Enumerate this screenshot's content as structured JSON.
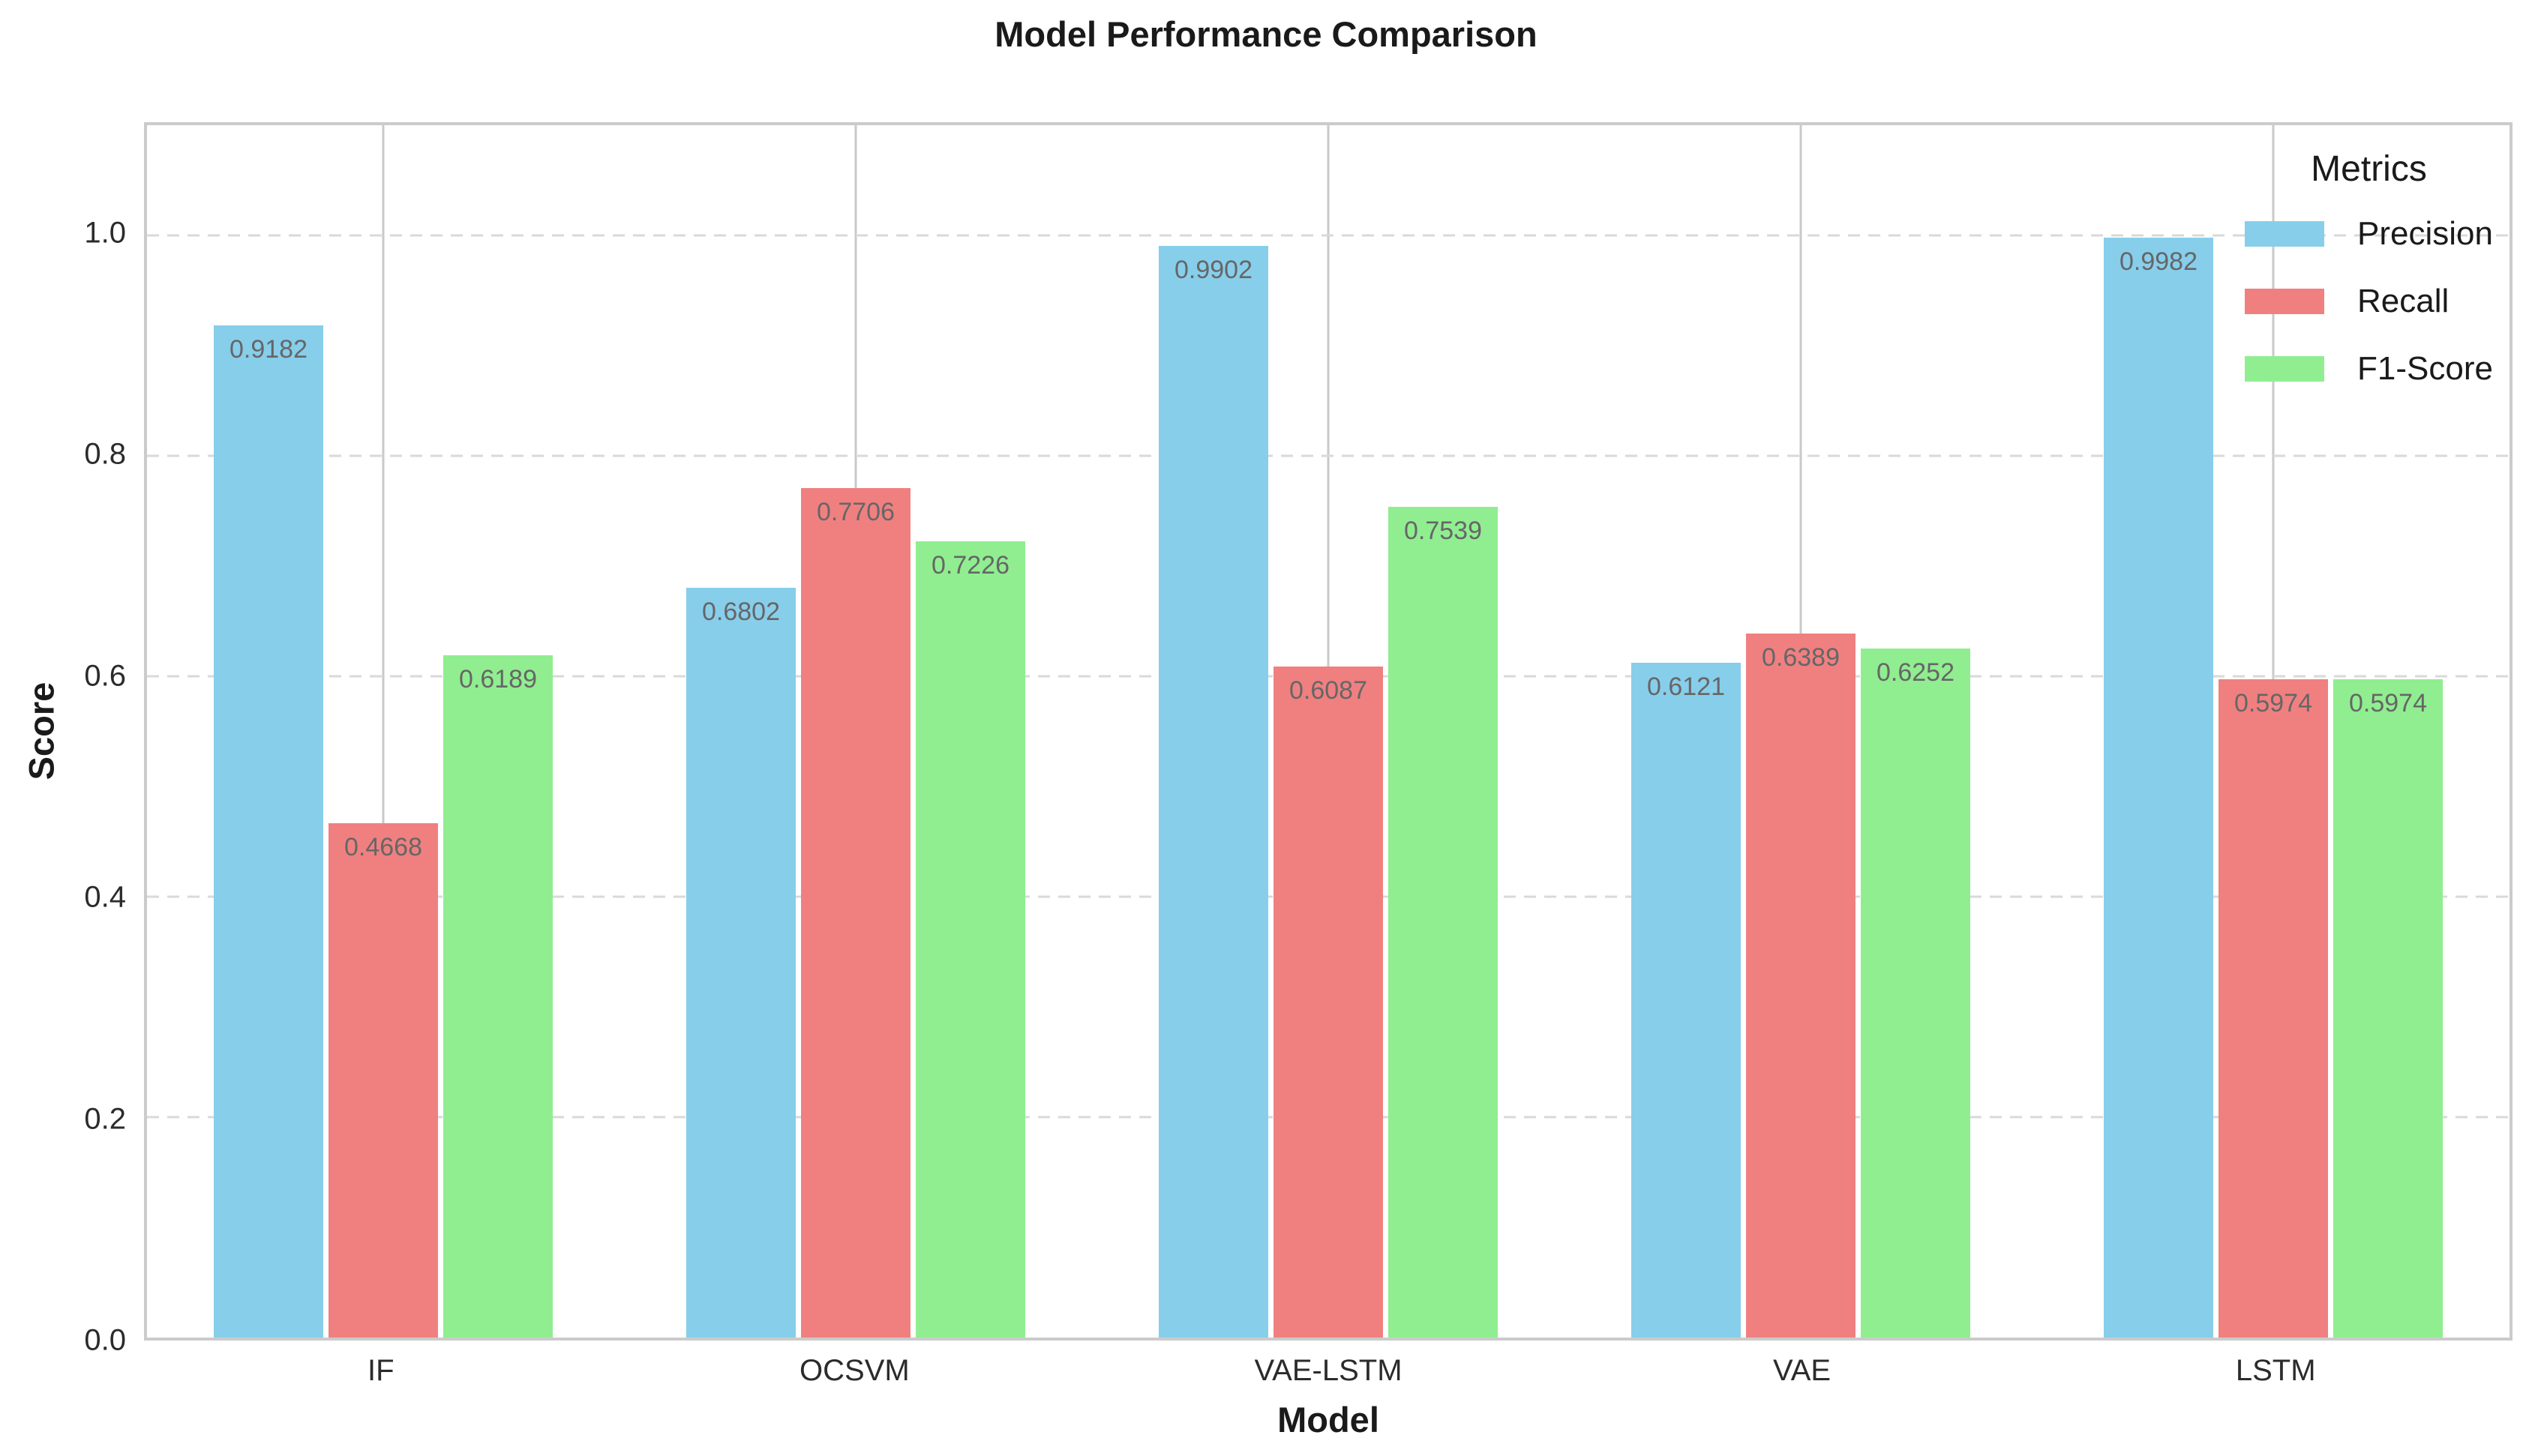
{
  "chart_data": {
    "type": "bar",
    "title": "Model Performance Comparison",
    "xlabel": "Model",
    "ylabel": "Score",
    "categories": [
      "IF",
      "OCSVM",
      "VAE-LSTM",
      "VAE",
      "LSTM"
    ],
    "series": [
      {
        "name": "Precision",
        "color": "#87CEEB",
        "values": [
          0.9182,
          0.6802,
          0.9902,
          0.6121,
          0.9982
        ]
      },
      {
        "name": "Recall",
        "color": "#F08080",
        "values": [
          0.4668,
          0.7706,
          0.6087,
          0.6389,
          0.5974
        ]
      },
      {
        "name": "F1-Score",
        "color": "#90EE90",
        "values": [
          0.6189,
          0.7226,
          0.7539,
          0.6252,
          0.5974
        ]
      }
    ],
    "value_decimals": 4,
    "value_label_color": "#666666",
    "yticks": [
      0.0,
      0.2,
      0.4,
      0.6,
      0.8,
      1.0
    ],
    "ylim": [
      0,
      1.1
    ],
    "grid": {
      "horizontal": "dashed",
      "vertical": "solid",
      "color": "#d0d0d0"
    },
    "legend": {
      "title": "Metrics",
      "position": "upper right",
      "frame": false
    }
  }
}
